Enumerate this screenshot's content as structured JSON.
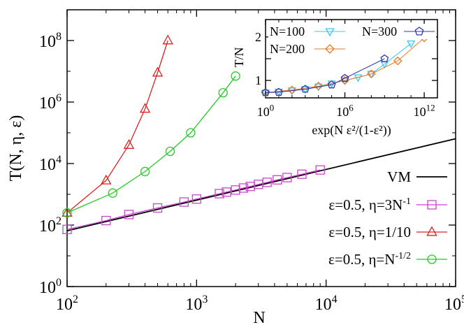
{
  "chart_data": [
    {
      "type": "line",
      "xlabel": "N",
      "ylabel": "T(N, η, ε)",
      "xscale": "log",
      "yscale": "log",
      "xlim": [
        100,
        100000
      ],
      "ylim": [
        1,
        1000000000
      ],
      "x_ticks": [
        {
          "value": 100,
          "base": "10",
          "exp": "2"
        },
        {
          "value": 1000,
          "base": "10",
          "exp": "3"
        },
        {
          "value": 10000,
          "base": "10",
          "exp": "4"
        },
        {
          "value": 100000,
          "base": "10",
          "exp": "5"
        }
      ],
      "y_ticks": [
        {
          "value": 1,
          "base": "10",
          "exp": "0"
        },
        {
          "value": 100,
          "base": "10",
          "exp": "2"
        },
        {
          "value": 10000,
          "base": "10",
          "exp": "4"
        },
        {
          "value": 1000000,
          "base": "10",
          "exp": "6"
        },
        {
          "value": 100000000,
          "base": "10",
          "exp": "8"
        }
      ],
      "legend_position": "bottom-right",
      "series": [
        {
          "name": "VM",
          "color": "#000000",
          "marker": "none",
          "x": [
            100,
            100000
          ],
          "y": [
            65,
            64000
          ]
        },
        {
          "name": "ε=0.5, η=3N",
          "name_sup": "-1",
          "color": "#cc44cc",
          "marker": "square",
          "x": [
            100,
            200,
            300,
            500,
            800,
            1000,
            1500,
            1700,
            2000,
            2300,
            2600,
            3000,
            3500,
            4200,
            5000,
            6500,
            9000
          ],
          "y": [
            72,
            140,
            220,
            360,
            560,
            700,
            1050,
            1180,
            1380,
            1600,
            1800,
            2100,
            2450,
            2950,
            3500,
            4500,
            6200
          ]
        },
        {
          "name": "ε=0.5, η=1/10",
          "color": "#dd2222",
          "marker": "triangle",
          "x": [
            100,
            200,
            300,
            400,
            500,
            600
          ],
          "y": [
            250,
            2800,
            40000,
            600000,
            9000000,
            100000000
          ]
        },
        {
          "name": "ε=0.5, η=N",
          "name_sup": "-1/2",
          "color": "#22cc22",
          "marker": "circle",
          "x": [
            100,
            225,
            400,
            625,
            900,
            1600,
            2000
          ],
          "y": [
            250,
            1100,
            5500,
            25000,
            100000,
            2000000,
            7000000
          ]
        }
      ]
    },
    {
      "type": "scatter",
      "xlabel": "exp(N ε²/(1-ε²))",
      "ylabel": "T/N",
      "xscale": "log",
      "xlim": [
        1,
        10000000000000.0
      ],
      "ylim": [
        0.6,
        2.4
      ],
      "x_ticks": [
        {
          "value": 1,
          "base": "10",
          "exp": "0"
        },
        {
          "value": 1000000,
          "base": "10",
          "exp": "6"
        },
        {
          "value": 1000000000000,
          "base": "10",
          "exp": "12"
        }
      ],
      "y_ticks": [
        1,
        1.5,
        2
      ],
      "legend_position": "top",
      "series": [
        {
          "name": "N=100",
          "color": "#33ccee",
          "marker": "triangle-down",
          "x": [
            1,
            10,
            100,
            1000,
            10000,
            100000,
            1000000,
            10000000,
            100000000,
            1000000000.0,
            100000000000.0
          ],
          "y": [
            0.72,
            0.74,
            0.77,
            0.8,
            0.86,
            0.93,
            1.0,
            1.07,
            1.15,
            1.38,
            1.85
          ]
        },
        {
          "name": "N=200",
          "color": "#ee7722",
          "marker": "diamond",
          "x": [
            1,
            100,
            10000,
            1000000,
            100000000,
            10000000000.0,
            1000000000000.0
          ],
          "y": [
            0.72,
            0.78,
            0.87,
            1.0,
            1.15,
            1.45,
            1.98
          ]
        },
        {
          "name": "N=300",
          "color": "#3333aa",
          "marker": "pentagon",
          "x": [
            1,
            10,
            1000,
            100000,
            1000000,
            1000000000
          ],
          "y": [
            0.72,
            0.73,
            0.8,
            0.9,
            1.05,
            1.5
          ]
        }
      ]
    }
  ]
}
